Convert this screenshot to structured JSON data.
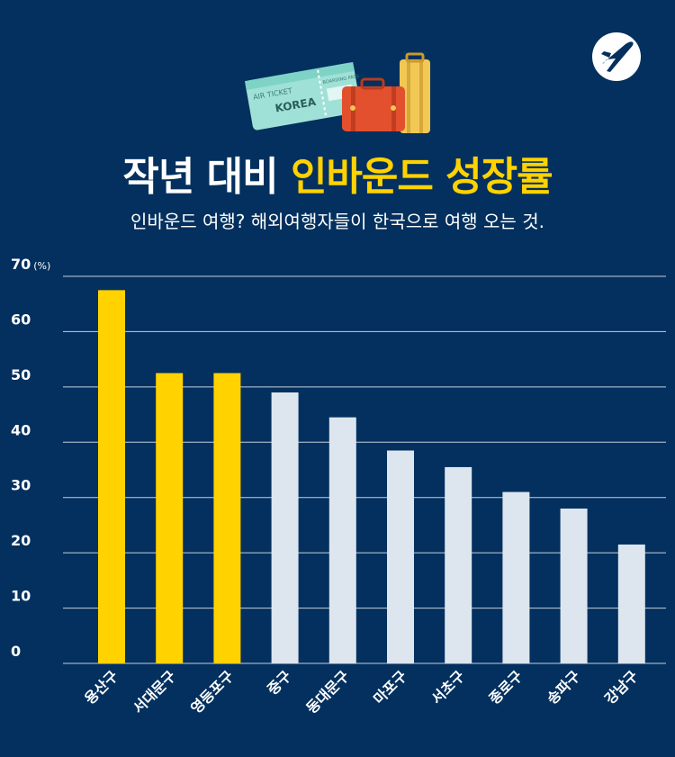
{
  "header": {
    "title_part1": "작년 대비",
    "title_part2": "인바운드 성장률",
    "subtitle": "인바운드 여행? 해외여행자들이 한국으로 여행 오는 것."
  },
  "illustration": {
    "ticket_title": "AIR TICKET",
    "ticket_pass": "BOARDING PASS",
    "ticket_destination": "KOREA"
  },
  "colors": {
    "background": "#03305e",
    "highlight_bar": "#ffd200",
    "normal_bar": "#dde5ee",
    "gridline": "#c5d0dc"
  },
  "chart_data": {
    "type": "bar",
    "title": "작년 대비 인바운드 성장률",
    "ylabel": "(%)",
    "xlabel": "",
    "ylim": [
      0,
      70
    ],
    "yticks": [
      0,
      10,
      20,
      30,
      40,
      50,
      60,
      70
    ],
    "categories": [
      "용산구",
      "서대문구",
      "영등포구",
      "중구",
      "동대문구",
      "마포구",
      "서초구",
      "종로구",
      "송파구",
      "강남구"
    ],
    "values": [
      67.5,
      52.5,
      52.5,
      49,
      44.5,
      38.5,
      35.5,
      31,
      28,
      21.5
    ],
    "highlighted": [
      true,
      true,
      true,
      false,
      false,
      false,
      false,
      false,
      false,
      false
    ],
    "grid": true
  }
}
